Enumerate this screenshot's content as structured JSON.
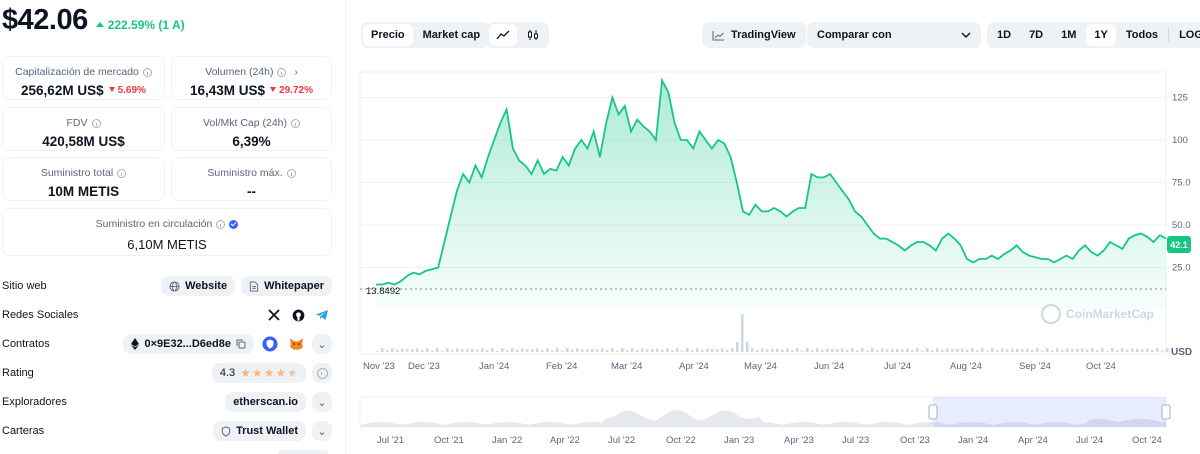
{
  "coin": {
    "price": "$42.06",
    "change": "222.59% (1 A)"
  },
  "stats": {
    "market_cap": {
      "label": "Capitalización de mercado",
      "value": "256,62M US$",
      "change": "5.69%"
    },
    "volume": {
      "label": "Volumen (24h)",
      "value": "16,43M US$",
      "change": "29.72%"
    },
    "fdv": {
      "label": "FDV",
      "value": "420,58M US$"
    },
    "vol_mkt": {
      "label": "Vol/Mkt Cap (24h)",
      "value": "6,39%"
    },
    "total_supply": {
      "label": "Suministro total",
      "value": "10M METIS"
    },
    "max_supply": {
      "label": "Suministro máx.",
      "value": "--"
    },
    "circulating": {
      "label": "Suministro en circulación",
      "value": "6,10M METIS"
    }
  },
  "links": {
    "website_label": "Sitio web",
    "website_btn": "Website",
    "whitepaper_btn": "Whitepaper",
    "social_label": "Redes Sociales",
    "contracts_label": "Contratos",
    "contract_addr": "0×9E32...D6ed8e",
    "rating_label": "Rating",
    "rating_value": "4.3",
    "explorers_label": "Exploradores",
    "explorer_value": "etherscan.io",
    "wallets_label": "Carteras",
    "wallet_value": "Trust Wallet"
  },
  "toolbar": {
    "price_tab": "Precio",
    "marketcap_tab": "Market cap",
    "tradingview": "TradingView",
    "compare": "Comparar con",
    "ranges": [
      "1D",
      "7D",
      "1M",
      "1Y",
      "Todos"
    ],
    "active_range": "1Y",
    "log": "LOG"
  },
  "watermark": "CoinMarketCap",
  "chart_data": {
    "type": "area",
    "y_ticks": [
      "125",
      "100",
      "75.0",
      "50.0",
      "25.0"
    ],
    "y_currency": "USD",
    "min_label": "13.8492",
    "current_label": "42.1",
    "x_labels": [
      "Nov '23",
      "Dec '23",
      "Jan '24",
      "Feb '24",
      "Mar '24",
      "Apr '24",
      "May '24",
      "Jun '24",
      "Jul '24",
      "Aug '24",
      "Sep '24",
      "Oct '24"
    ],
    "ylim": [
      0,
      140
    ],
    "series": [
      {
        "values": [
          15,
          15,
          16,
          15,
          17,
          20,
          22,
          21,
          23,
          24,
          25,
          40,
          55,
          70,
          80,
          75,
          85,
          78,
          90,
          100,
          110,
          118,
          95,
          88,
          85,
          80,
          88,
          80,
          83,
          82,
          90,
          85,
          95,
          100,
          95,
          105,
          90,
          110,
          125,
          115,
          120,
          105,
          112,
          108,
          105,
          100,
          135,
          128,
          110,
          100,
          100,
          95,
          105,
          100,
          95,
          100,
          98,
          90,
          75,
          58,
          56,
          62,
          58,
          58,
          60,
          58,
          55,
          58,
          60,
          60,
          80,
          78,
          78,
          80,
          75,
          70,
          65,
          58,
          55,
          50,
          45,
          42,
          42,
          40,
          38,
          35,
          38,
          40,
          40,
          38,
          35,
          42,
          45,
          42,
          38,
          30,
          28,
          30,
          30,
          32,
          30,
          33,
          35,
          38,
          34,
          32,
          31,
          30,
          30,
          28,
          30,
          32,
          30,
          35,
          38,
          34,
          32,
          35,
          40,
          38,
          36,
          42,
          44,
          45,
          43,
          40,
          44,
          42.06
        ]
      }
    ],
    "nav_x_labels": [
      "Jul '21",
      "Oct '21",
      "Jan '22",
      "Apr '22",
      "Jul '22",
      "Oct '22",
      "Jan '23",
      "Apr '23",
      "Jul '23",
      "Oct '23",
      "Jan '24",
      "Apr '24",
      "Jul '24",
      "Oct '24"
    ]
  }
}
